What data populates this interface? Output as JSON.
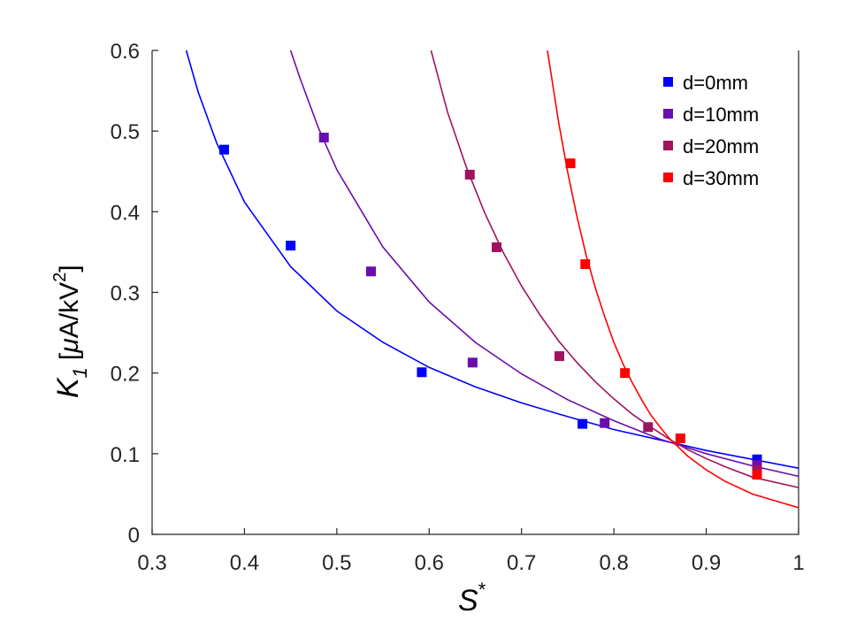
{
  "chart_data": {
    "type": "scatter",
    "xlabel": "S",
    "xlabel_sup": "*",
    "ylabel_var": "K",
    "ylabel_sub": "1",
    "ylabel_unit_pre": "[",
    "ylabel_unit_mu": "μ",
    "ylabel_unit_mid": "A/kV",
    "ylabel_unit_sup": "2",
    "ylabel_unit_post": "]",
    "xlim": [
      0.3,
      1.0
    ],
    "ylim": [
      0,
      0.6
    ],
    "xticks": [
      0.3,
      0.4,
      0.5,
      0.6,
      0.7,
      0.8,
      0.9,
      1.0
    ],
    "xtick_labels": [
      "0.3",
      "0.4",
      "0.5",
      "0.6",
      "0.7",
      "0.8",
      "0.9",
      "1"
    ],
    "yticks": [
      0,
      0.1,
      0.2,
      0.3,
      0.4,
      0.5,
      0.6
    ],
    "ytick_labels": [
      "0",
      "0.1",
      "0.2",
      "0.3",
      "0.4",
      "0.5",
      "0.6"
    ],
    "grid": false,
    "legend_position": "top-right",
    "series": [
      {
        "name": "d=0mm",
        "color": "#0000ff",
        "points": [
          [
            0.378,
            0.477
          ],
          [
            0.45,
            0.358
          ],
          [
            0.592,
            0.201
          ],
          [
            0.766,
            0.137
          ],
          [
            0.955,
            0.093
          ]
        ],
        "fit": [
          [
            0.337,
            0.6
          ],
          [
            0.35,
            0.548
          ],
          [
            0.37,
            0.485
          ],
          [
            0.4,
            0.412
          ],
          [
            0.45,
            0.332
          ],
          [
            0.5,
            0.277
          ],
          [
            0.55,
            0.238
          ],
          [
            0.6,
            0.207
          ],
          [
            0.65,
            0.183
          ],
          [
            0.7,
            0.163
          ],
          [
            0.75,
            0.146
          ],
          [
            0.8,
            0.13
          ],
          [
            0.85,
            0.117
          ],
          [
            0.9,
            0.104
          ],
          [
            0.95,
            0.093
          ],
          [
            1.0,
            0.082
          ]
        ]
      },
      {
        "name": "d=10mm",
        "color": "#6a0dad",
        "points": [
          [
            0.486,
            0.492
          ],
          [
            0.537,
            0.326
          ],
          [
            0.647,
            0.213
          ],
          [
            0.79,
            0.138
          ],
          [
            0.955,
            0.086
          ]
        ],
        "fit": [
          [
            0.45,
            0.6
          ],
          [
            0.46,
            0.566
          ],
          [
            0.48,
            0.504
          ],
          [
            0.5,
            0.452
          ],
          [
            0.55,
            0.356
          ],
          [
            0.6,
            0.288
          ],
          [
            0.65,
            0.238
          ],
          [
            0.7,
            0.199
          ],
          [
            0.75,
            0.167
          ],
          [
            0.8,
            0.141
          ],
          [
            0.85,
            0.118
          ],
          [
            0.9,
            0.1
          ],
          [
            0.95,
            0.085
          ],
          [
            1.0,
            0.072
          ]
        ]
      },
      {
        "name": "d=20mm",
        "color": "#a0135e",
        "points": [
          [
            0.644,
            0.446
          ],
          [
            0.673,
            0.356
          ],
          [
            0.741,
            0.221
          ],
          [
            0.837,
            0.133
          ],
          [
            0.955,
            0.08
          ]
        ],
        "fit": [
          [
            0.602,
            0.6
          ],
          [
            0.62,
            0.523
          ],
          [
            0.64,
            0.456
          ],
          [
            0.66,
            0.399
          ],
          [
            0.68,
            0.35
          ],
          [
            0.7,
            0.308
          ],
          [
            0.72,
            0.272
          ],
          [
            0.74,
            0.24
          ],
          [
            0.76,
            0.213
          ],
          [
            0.78,
            0.189
          ],
          [
            0.8,
            0.168
          ],
          [
            0.82,
            0.149
          ],
          [
            0.84,
            0.133
          ],
          [
            0.86,
            0.118
          ],
          [
            0.88,
            0.105
          ],
          [
            0.9,
            0.094
          ],
          [
            0.92,
            0.084
          ],
          [
            0.95,
            0.071
          ],
          [
            1.0,
            0.058
          ]
        ]
      },
      {
        "name": "d=30mm",
        "color": "#ff0000",
        "points": [
          [
            0.753,
            0.46
          ],
          [
            0.769,
            0.335
          ],
          [
            0.812,
            0.2
          ],
          [
            0.872,
            0.119
          ],
          [
            0.955,
            0.074
          ]
        ],
        "fit": [
          [
            0.728,
            0.6
          ],
          [
            0.74,
            0.512
          ],
          [
            0.75,
            0.449
          ],
          [
            0.76,
            0.394
          ],
          [
            0.77,
            0.346
          ],
          [
            0.78,
            0.305
          ],
          [
            0.79,
            0.27
          ],
          [
            0.8,
            0.238
          ],
          [
            0.81,
            0.211
          ],
          [
            0.82,
            0.188
          ],
          [
            0.83,
            0.167
          ],
          [
            0.84,
            0.148
          ],
          [
            0.85,
            0.133
          ],
          [
            0.86,
            0.119
          ],
          [
            0.88,
            0.097
          ],
          [
            0.9,
            0.08
          ],
          [
            0.92,
            0.066
          ],
          [
            0.95,
            0.05
          ],
          [
            1.0,
            0.033
          ]
        ]
      }
    ]
  }
}
